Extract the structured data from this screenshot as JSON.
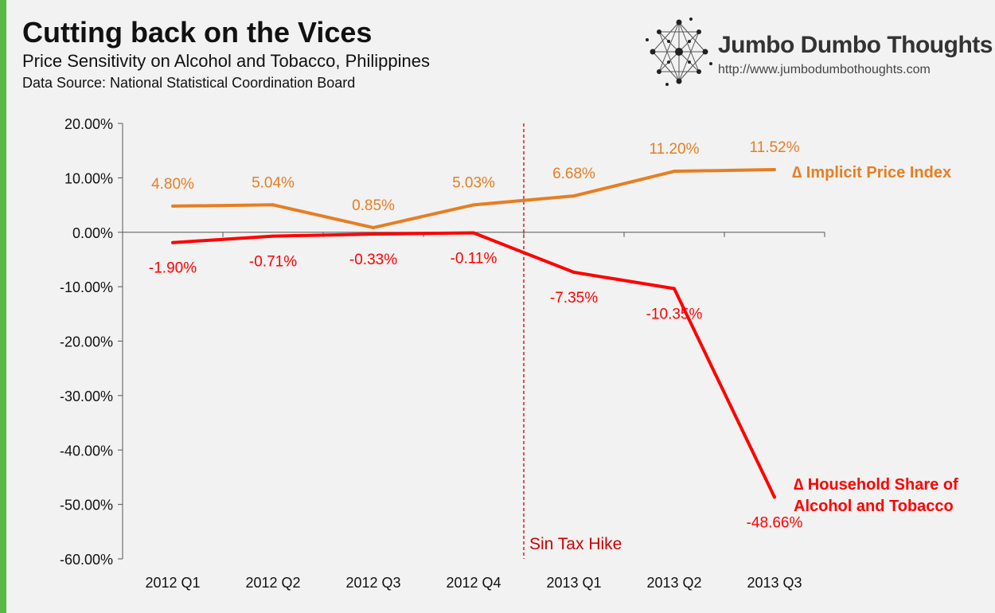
{
  "header": {
    "title": "Cutting back on the Vices",
    "subtitle": "Price Sensitivity on Alcohol and Tobacco, Philippines",
    "source": "Data Source: National Statistical Coordination Board"
  },
  "brand": {
    "name": "Jumbo Dumbo Thoughts",
    "url": "http://www.jumbodumbothoughts.com"
  },
  "colors": {
    "accent_bar": "#5cb846",
    "price_index": "#e67e22",
    "household_share": "#ff0000",
    "axis": "#555555"
  },
  "chart_data": {
    "type": "line",
    "title": "Cutting back on the Vices",
    "subtitle": "Price Sensitivity on Alcohol and Tobacco, Philippines",
    "categories": [
      "2012 Q1",
      "2012 Q2",
      "2012 Q3",
      "2012 Q4",
      "2013 Q1",
      "2013 Q2",
      "2013 Q3"
    ],
    "ylim": [
      -60,
      20
    ],
    "yticks": [
      20,
      10,
      0,
      -10,
      -20,
      -30,
      -40,
      -50,
      -60
    ],
    "ytick_labels": [
      "20.00%",
      "10.00%",
      "0.00%",
      "-10.00%",
      "-20.00%",
      "-30.00%",
      "-40.00%",
      "-50.00%",
      "-60.00%"
    ],
    "grid": false,
    "legend": "labels at line ends (right)",
    "series": [
      {
        "name": "∆ Implicit Price Index",
        "legend_lines": [
          "∆ Implicit Price Index"
        ],
        "color": "#e67e22",
        "values": [
          4.8,
          5.04,
          0.85,
          5.03,
          6.68,
          11.2,
          11.52
        ],
        "labels": [
          "4.80%",
          "5.04%",
          "0.85%",
          "5.03%",
          "6.68%",
          "11.20%",
          "11.52%"
        ]
      },
      {
        "name": "∆ Household Share of Alcohol and Tobacco",
        "legend_lines": [
          "∆ Household Share of",
          "Alcohol and Tobacco"
        ],
        "color": "#ff0000",
        "values": [
          -1.9,
          -0.71,
          -0.33,
          -0.11,
          -7.35,
          -10.35,
          -48.66
        ],
        "labels": [
          "-1.90%",
          "-0.71%",
          "-0.33%",
          "-0.11%",
          "-7.35%",
          "-10.35%",
          "-48.66%"
        ]
      }
    ],
    "annotations": [
      {
        "text": "Sin Tax Hike",
        "between": [
          "2012 Q4",
          "2013 Q1"
        ]
      }
    ]
  }
}
